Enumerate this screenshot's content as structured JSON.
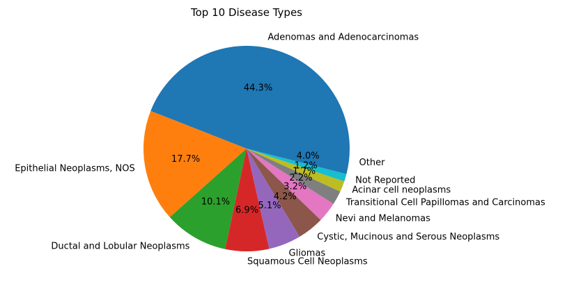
{
  "chart_data": {
    "type": "pie",
    "title": "Top 10 Disease Types",
    "start_angle_deg": 0,
    "direction": "counterclockwise",
    "slices": [
      {
        "label": "Adenomas and Adenocarcinomas",
        "value": 44.3,
        "pct_label": "44.3%",
        "color": "#1f77b4"
      },
      {
        "label": "Epithelial Neoplasms, NOS",
        "value": 17.7,
        "pct_label": "17.7%",
        "color": "#ff7f0e"
      },
      {
        "label": "Ductal and Lobular Neoplasms",
        "value": 10.1,
        "pct_label": "10.1%",
        "color": "#2ca02c"
      },
      {
        "label": "Squamous Cell Neoplasms",
        "value": 6.9,
        "pct_label": "6.9%",
        "color": "#d62728"
      },
      {
        "label": "Gliomas",
        "value": 5.1,
        "pct_label": "5.1%",
        "color": "#9467bd"
      },
      {
        "label": "Cystic, Mucinous and Serous Neoplasms",
        "value": 4.2,
        "pct_label": "4.2%",
        "color": "#8c564b"
      },
      {
        "label": "Nevi and Melanomas",
        "value": 3.2,
        "pct_label": "3.2%",
        "color": "#e377c2"
      },
      {
        "label": "Transitional Cell Papillomas and Carcinomas",
        "value": 2.2,
        "pct_label": "2.2%",
        "color": "#7f7f7f"
      },
      {
        "label": "Acinar cell neoplasms",
        "value": 1.7,
        "pct_label": "1.7%",
        "color": "#bcbd22"
      },
      {
        "label": "Not Reported",
        "value": 1.2,
        "pct_label": "1.2%",
        "color": "#17becf"
      },
      {
        "label": "Other",
        "value": 4.0,
        "pct_label": "4.0%",
        "color": "#1f77b4"
      }
    ]
  }
}
